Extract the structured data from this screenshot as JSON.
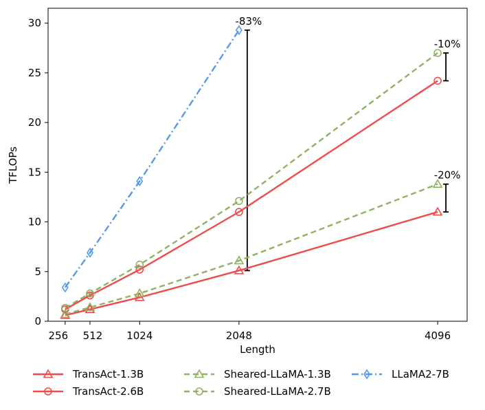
{
  "chart_data": {
    "type": "line",
    "title": "",
    "xlabel": "Length",
    "ylabel": "TFLOPs",
    "x": [
      256,
      512,
      1024,
      2048,
      4096
    ],
    "xlim": [
      80,
      4400
    ],
    "ylim": [
      0,
      31.5
    ],
    "xticks": [
      256,
      512,
      1024,
      2048,
      4096
    ],
    "xtick_labels": [
      "256",
      "512",
      "1024",
      "2048",
      "4096"
    ],
    "yticks": [
      0,
      5,
      10,
      15,
      20,
      25,
      30
    ],
    "ytick_labels": [
      "0",
      "5",
      "10",
      "15",
      "20",
      "25",
      "30"
    ],
    "grid": false,
    "legend_position": "bottom",
    "series": [
      {
        "name": "TransAct-1.3B",
        "x": [
          256,
          512,
          1024,
          2048,
          4096
        ],
        "values": [
          0.6,
          1.2,
          2.4,
          5.1,
          11.0
        ],
        "color": "#ef4b4b",
        "linestyle": "solid",
        "marker": "triangle"
      },
      {
        "name": "TransAct-2.6B",
        "x": [
          256,
          512,
          1024,
          2048,
          4096
        ],
        "values": [
          1.2,
          2.6,
          5.2,
          11.0,
          24.2
        ],
        "color": "#ef4b4b",
        "linestyle": "solid",
        "marker": "circle"
      },
      {
        "name": "Sheared-LLaMA-1.3B",
        "x": [
          256,
          512,
          1024,
          2048,
          4096
        ],
        "values": [
          0.7,
          1.4,
          2.8,
          6.1,
          13.8
        ],
        "color": "#8db360",
        "linestyle": "dashed",
        "marker": "triangle"
      },
      {
        "name": "Sheared-LLaMA-2.7B",
        "x": [
          256,
          512,
          1024,
          2048,
          4096
        ],
        "values": [
          1.35,
          2.8,
          5.7,
          12.1,
          27.0
        ],
        "color": "#8db360",
        "linestyle": "dashed",
        "marker": "circle"
      },
      {
        "name": "LLaMA2-7B",
        "x": [
          256,
          512,
          1024,
          2048
        ],
        "values": [
          3.4,
          6.9,
          14.1,
          29.3
        ],
        "color": "#5599ee",
        "linestyle": "dashdot",
        "marker": "diamond"
      }
    ],
    "annotations": [
      {
        "label": "-83%",
        "x": 2048,
        "y_low": 5.1,
        "y_high": 29.3
      },
      {
        "label": "-10%",
        "x": 4096,
        "y_low": 24.2,
        "y_high": 27.0
      },
      {
        "label": "-20%",
        "x": 4096,
        "y_low": 11.0,
        "y_high": 13.8
      }
    ]
  }
}
